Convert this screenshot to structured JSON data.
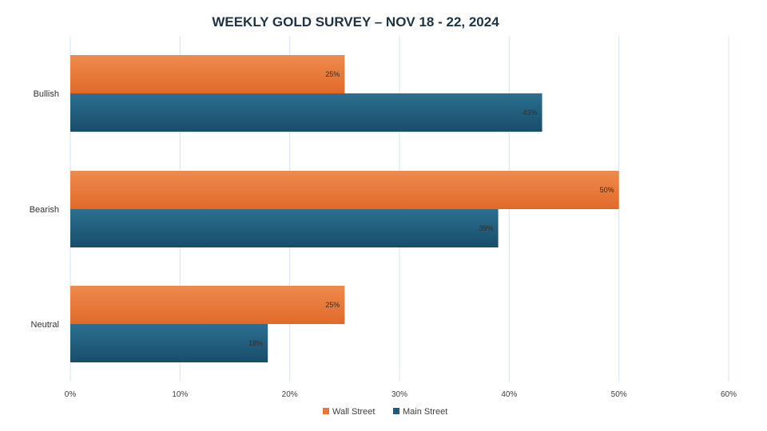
{
  "chart_data": {
    "type": "bar",
    "orientation": "horizontal",
    "title": "WEEKLY GOLD SURVEY – NOV 18 - 22, 2024",
    "categories": [
      "Bullish",
      "Bearish",
      "Neutral"
    ],
    "series": [
      {
        "name": "Wall Street",
        "values": [
          25,
          50,
          25
        ],
        "labels": [
          "25%",
          "50%",
          "25%"
        ],
        "color": "#e8773a"
      },
      {
        "name": "Main Street",
        "values": [
          43,
          39,
          18
        ],
        "labels": [
          "43%",
          "39%",
          "18%"
        ],
        "color": "#1f5b7a"
      }
    ],
    "xlim": [
      0,
      60
    ],
    "xticks": [
      0,
      10,
      20,
      30,
      40,
      50,
      60
    ],
    "xtick_labels": [
      "0%",
      "10%",
      "20%",
      "30%",
      "40%",
      "50%",
      "60%"
    ],
    "grid": true,
    "legend_position": "bottom"
  }
}
